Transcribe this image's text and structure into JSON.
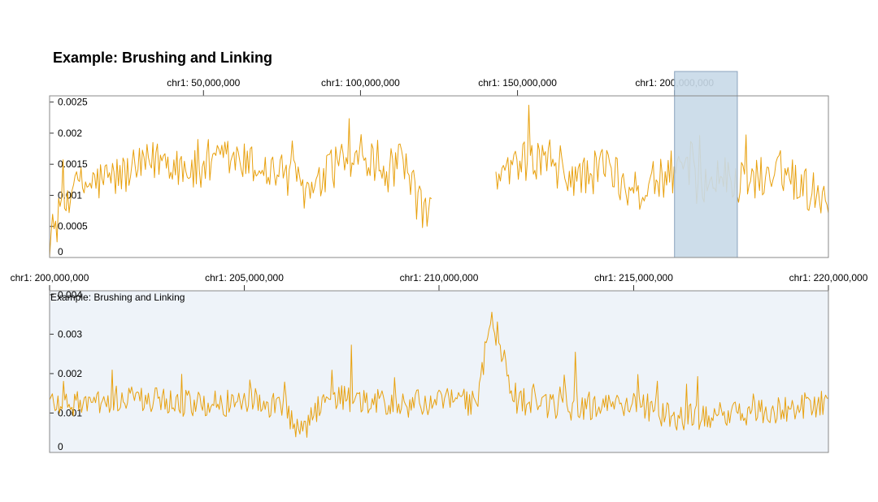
{
  "title": "Example: Brushing and Linking",
  "colors": {
    "line": "#e8a10f",
    "brush_fill": "#c8d9e8",
    "brush_stroke": "#8aa3bd",
    "detail_background": "#eef3f9"
  },
  "chart_data": [
    {
      "type": "line",
      "name": "overview",
      "xlabel": "",
      "ylabel": "",
      "x_axis_labels": [
        {
          "value": 50000000,
          "label": "chr1: 50,000,000"
        },
        {
          "value": 100000000,
          "label": "chr1: 100,000,000"
        },
        {
          "value": 150000000,
          "label": "chr1: 150,000,000"
        },
        {
          "value": 200000000,
          "label": "chr1: 200,000,000"
        }
      ],
      "xlim": [
        1000000,
        249000000
      ],
      "ylim": [
        0,
        0.0026
      ],
      "y_ticks": [
        {
          "value": 0,
          "label": "0"
        },
        {
          "value": 0.0005,
          "label": "0.0005"
        },
        {
          "value": 0.001,
          "label": "0.001"
        },
        {
          "value": 0.0015,
          "label": "0.0015"
        },
        {
          "value": 0.002,
          "label": "0.002"
        },
        {
          "value": 0.0025,
          "label": "0.0025"
        }
      ],
      "brush_range": [
        200000000,
        220000000
      ],
      "gap_range": [
        123000000,
        143000000
      ],
      "series": [
        {
          "name": "signal",
          "x": [
            1000000,
            8000000,
            15000000,
            22000000,
            29000000,
            36000000,
            43000000,
            50000000,
            57000000,
            64000000,
            71000000,
            78000000,
            85000000,
            92000000,
            99000000,
            106000000,
            113000000,
            120000000,
            144000000,
            151000000,
            158000000,
            165000000,
            172000000,
            179000000,
            186000000,
            193000000,
            200000000,
            207000000,
            214000000,
            221000000,
            228000000,
            235000000,
            242000000,
            249000000
          ],
          "values": [
            0.0003,
            0.0011,
            0.0012,
            0.0013,
            0.0014,
            0.0016,
            0.0015,
            0.0013,
            0.0016,
            0.0015,
            0.0014,
            0.0013,
            0.001,
            0.0015,
            0.0017,
            0.0013,
            0.0015,
            0.0007,
            0.0012,
            0.0015,
            0.0016,
            0.0013,
            0.0013,
            0.0015,
            0.001,
            0.0012,
            0.0014,
            0.0012,
            0.0013,
            0.0012,
            0.0013,
            0.0014,
            0.0011,
            0.001
          ]
        }
      ]
    },
    {
      "type": "line",
      "name": "detail",
      "track_label": "Example: Brushing and Linking",
      "xlabel": "",
      "ylabel": "",
      "x_axis_labels": [
        {
          "value": 200000000,
          "label": "chr1: 200,000,000"
        },
        {
          "value": 205000000,
          "label": "chr1: 205,000,000"
        },
        {
          "value": 210000000,
          "label": "chr1: 210,000,000"
        },
        {
          "value": 215000000,
          "label": "chr1: 215,000,000"
        },
        {
          "value": 220000000,
          "label": "chr1: 220,000,000"
        }
      ],
      "xlim": [
        200000000,
        220000000
      ],
      "ylim": [
        0,
        0.0041
      ],
      "y_ticks": [
        {
          "value": 0,
          "label": "0"
        },
        {
          "value": 0.001,
          "label": "0.001"
        },
        {
          "value": 0.002,
          "label": "0.002"
        },
        {
          "value": 0.003,
          "label": "0.003"
        },
        {
          "value": 0.004,
          "label": "0.004"
        }
      ],
      "series": [
        {
          "name": "signal",
          "x": [
            200000000,
            201000000,
            202000000,
            203000000,
            204000000,
            205000000,
            206000000,
            206500000,
            207000000,
            208000000,
            209000000,
            210000000,
            211000000,
            211300000,
            212000000,
            213000000,
            214000000,
            215000000,
            216000000,
            217000000,
            218000000,
            219000000,
            220000000
          ],
          "values": [
            0.0013,
            0.0012,
            0.0014,
            0.0013,
            0.0012,
            0.0013,
            0.0012,
            0.0004,
            0.0014,
            0.0013,
            0.0012,
            0.0013,
            0.0012,
            0.0034,
            0.0013,
            0.0012,
            0.0011,
            0.0013,
            0.0009,
            0.0009,
            0.001,
            0.0011,
            0.0013
          ]
        }
      ]
    }
  ]
}
